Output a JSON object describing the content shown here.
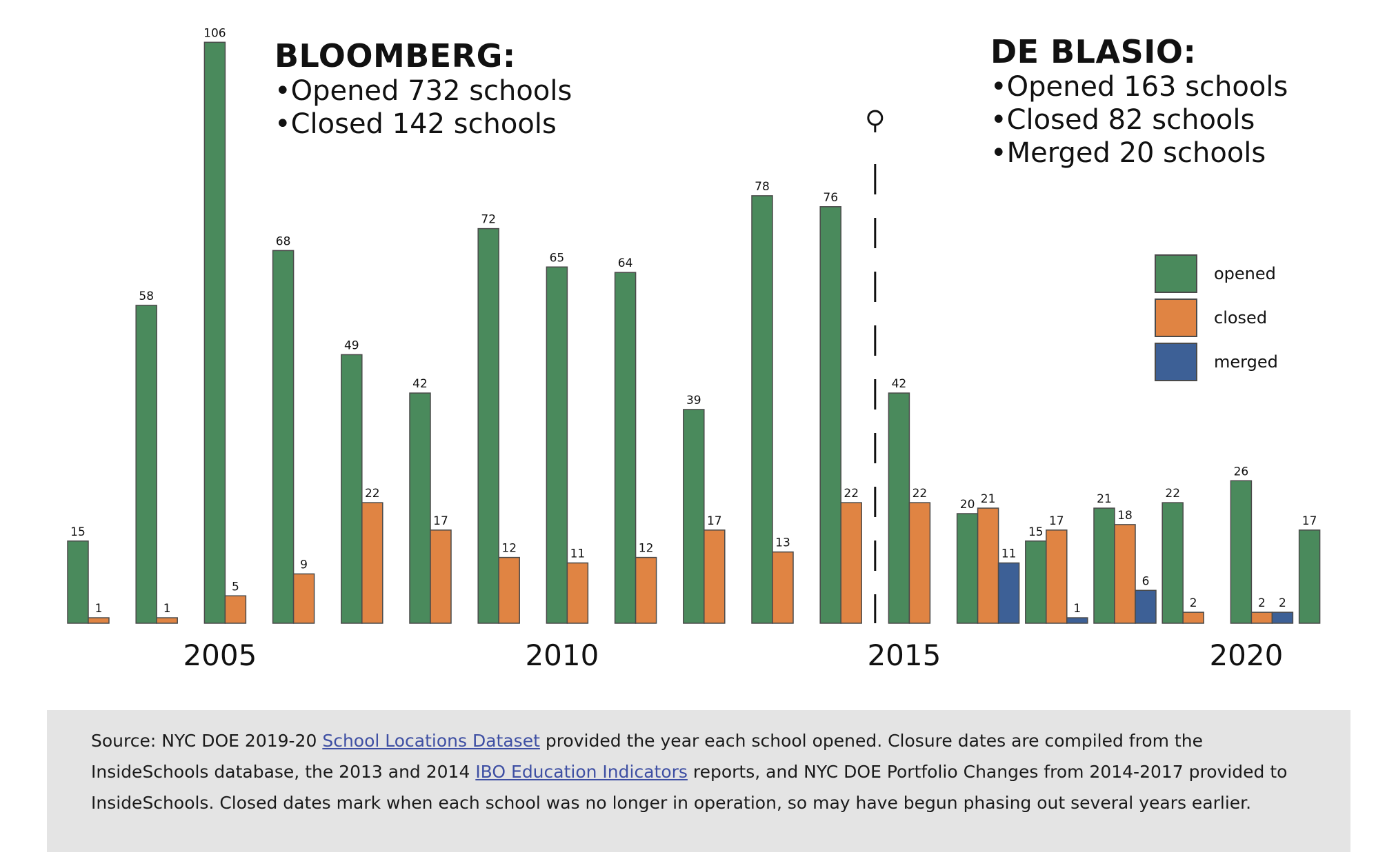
{
  "chart_data": {
    "type": "bar",
    "x": [
      2003,
      2004,
      2005,
      2006,
      2007,
      2008,
      2009,
      2010,
      2011,
      2012,
      2013,
      2014,
      2015,
      2016,
      2017,
      2018,
      2019,
      2020,
      2021
    ],
    "series": [
      {
        "name": "opened",
        "color": "#4a8a5c",
        "values": [
          15,
          58,
          106,
          68,
          49,
          42,
          72,
          65,
          64,
          39,
          78,
          76,
          42,
          20,
          15,
          21,
          22,
          26,
          17
        ]
      },
      {
        "name": "closed",
        "color": "#e08443",
        "values": [
          1,
          1,
          5,
          9,
          22,
          17,
          12,
          11,
          12,
          17,
          13,
          22,
          22,
          21,
          17,
          18,
          2,
          2,
          null
        ]
      },
      {
        "name": "merged",
        "color": "#3d6096",
        "values": [
          null,
          null,
          null,
          null,
          null,
          null,
          null,
          null,
          null,
          null,
          null,
          null,
          null,
          11,
          1,
          6,
          null,
          2,
          null
        ]
      }
    ],
    "tick_labels": [
      "2005",
      "2010",
      "2015",
      "2020"
    ],
    "title": "",
    "xlabel": "",
    "ylabel": "",
    "ylim": [
      0,
      110
    ],
    "divider_between": [
      2014,
      2015
    ],
    "legend_position": "right"
  },
  "annotations": {
    "bloomberg": {
      "heading": "BLOOMBERG:",
      "lines": [
        "•Opened 732 schools",
        "•Closed 142 schools"
      ]
    },
    "deblasio": {
      "heading": "DE BLASIO:",
      "lines": [
        "•Opened 163 schools",
        "•Closed 82 schools",
        "•Merged 20 schools"
      ]
    }
  },
  "legend": {
    "items": [
      {
        "label": "opened",
        "color": "#4a8a5c"
      },
      {
        "label": "closed",
        "color": "#e08443"
      },
      {
        "label": "merged",
        "color": "#3d6096"
      }
    ]
  },
  "source": {
    "prefix": "Source: NYC DOE 2019-20 ",
    "link1": "School Locations Dataset",
    "middle": " provided the year each school opened. Closure dates are compiled from the InsideSchools database, the 2013 and 2014 ",
    "link2": "IBO Education Indicators",
    "suffix": " reports, and NYC DOE Portfolio Changes from 2014-2017 provided to InsideSchools. Closed dates mark when each school was no longer in operation, so may have begun phasing out several years earlier."
  },
  "colors": {
    "source_bg": "#e4e4e4",
    "link": "#3e4fa3",
    "bar_stroke": "#4a4a4a"
  }
}
